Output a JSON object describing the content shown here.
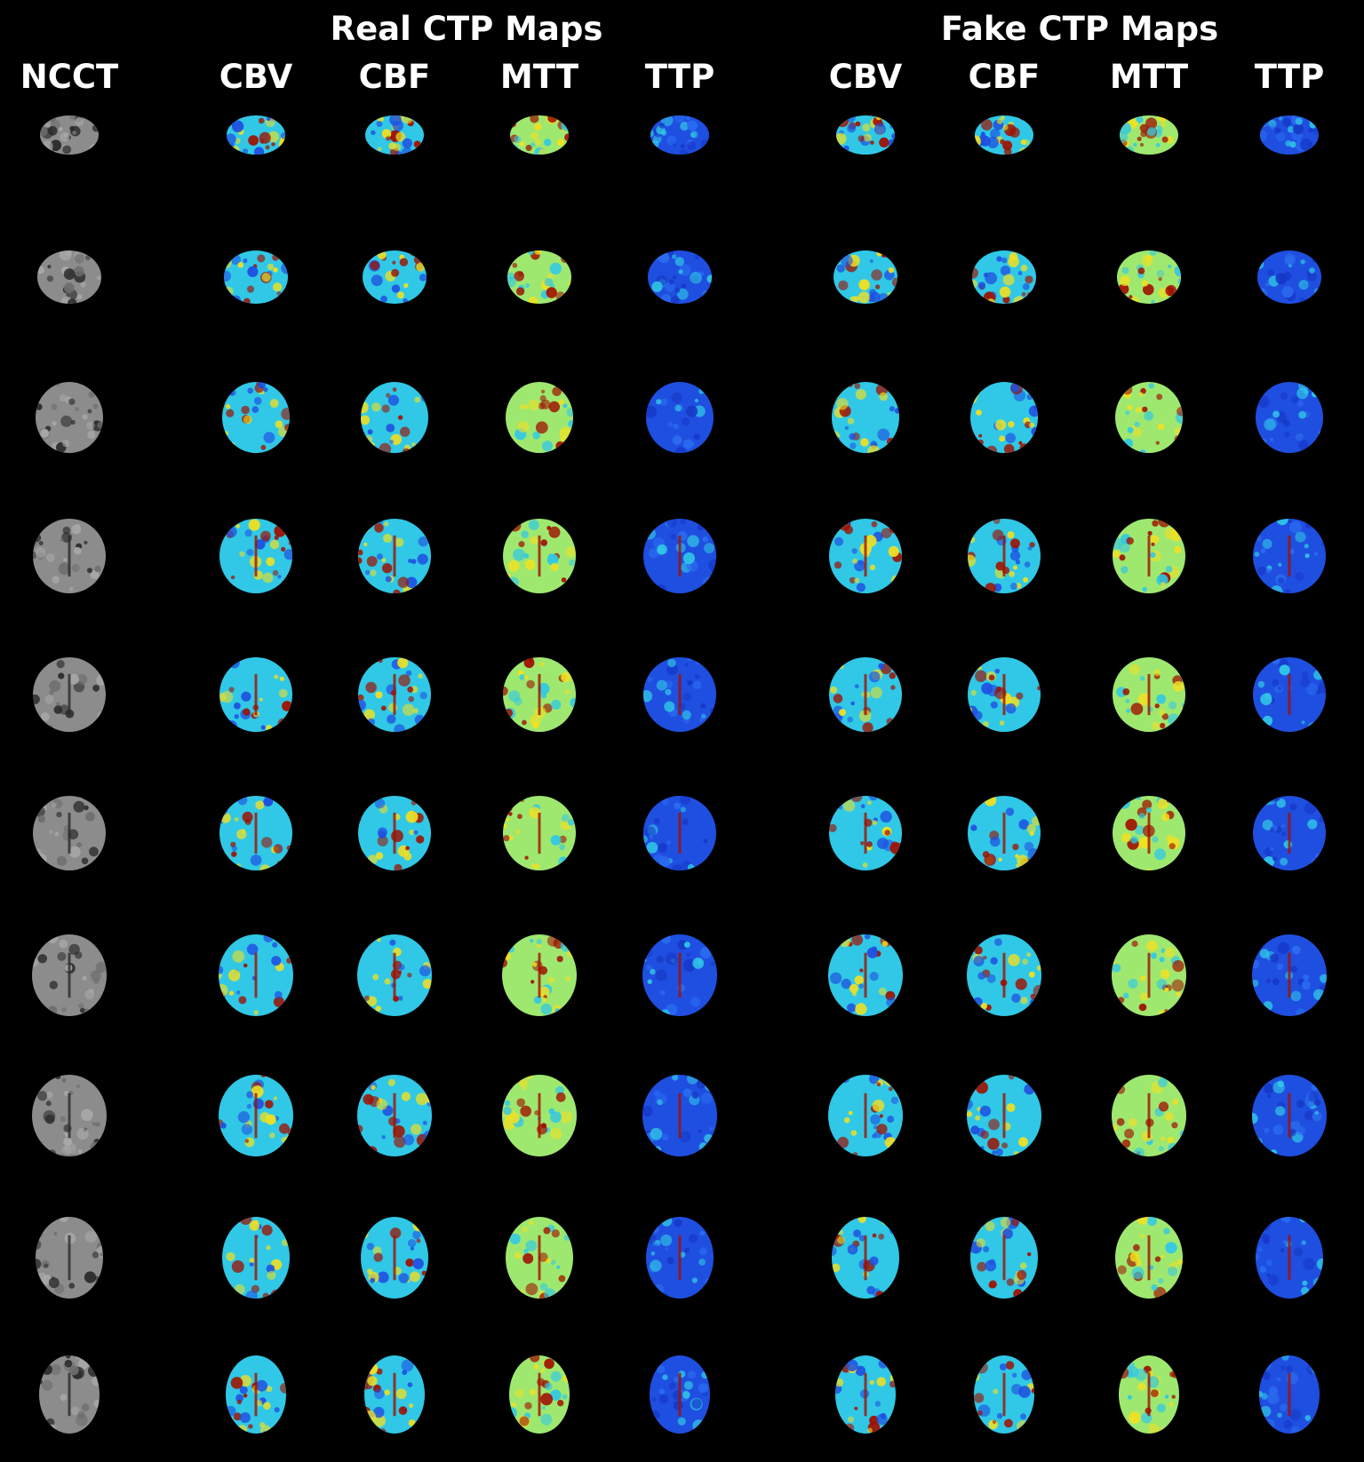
{
  "figure": {
    "group_titles": [
      "Real CTP Maps",
      "Fake CTP Maps"
    ],
    "columns": [
      {
        "label": "NCCT",
        "kind": "ncct"
      },
      {
        "label": "CBV",
        "kind": "cbv"
      },
      {
        "label": "CBF",
        "kind": "cbf"
      },
      {
        "label": "MTT",
        "kind": "mtt"
      },
      {
        "label": "TTP",
        "kind": "ttp"
      },
      {
        "label": "CBV",
        "kind": "cbv"
      },
      {
        "label": "CBF",
        "kind": "cbf"
      },
      {
        "label": "MTT",
        "kind": "mtt"
      },
      {
        "label": "TTP",
        "kind": "ttp"
      }
    ],
    "slice_count": 10,
    "colors": {
      "background": "#000000",
      "ncct_tissue": "#8c8c8c",
      "ncct_csf": "#2a2a2a",
      "map_low": "#1f4fe0",
      "map_mid": "#30c8e6",
      "map_high_mid": "#9fe870",
      "map_high": "#f2e020",
      "map_peak": "#a01000"
    }
  }
}
